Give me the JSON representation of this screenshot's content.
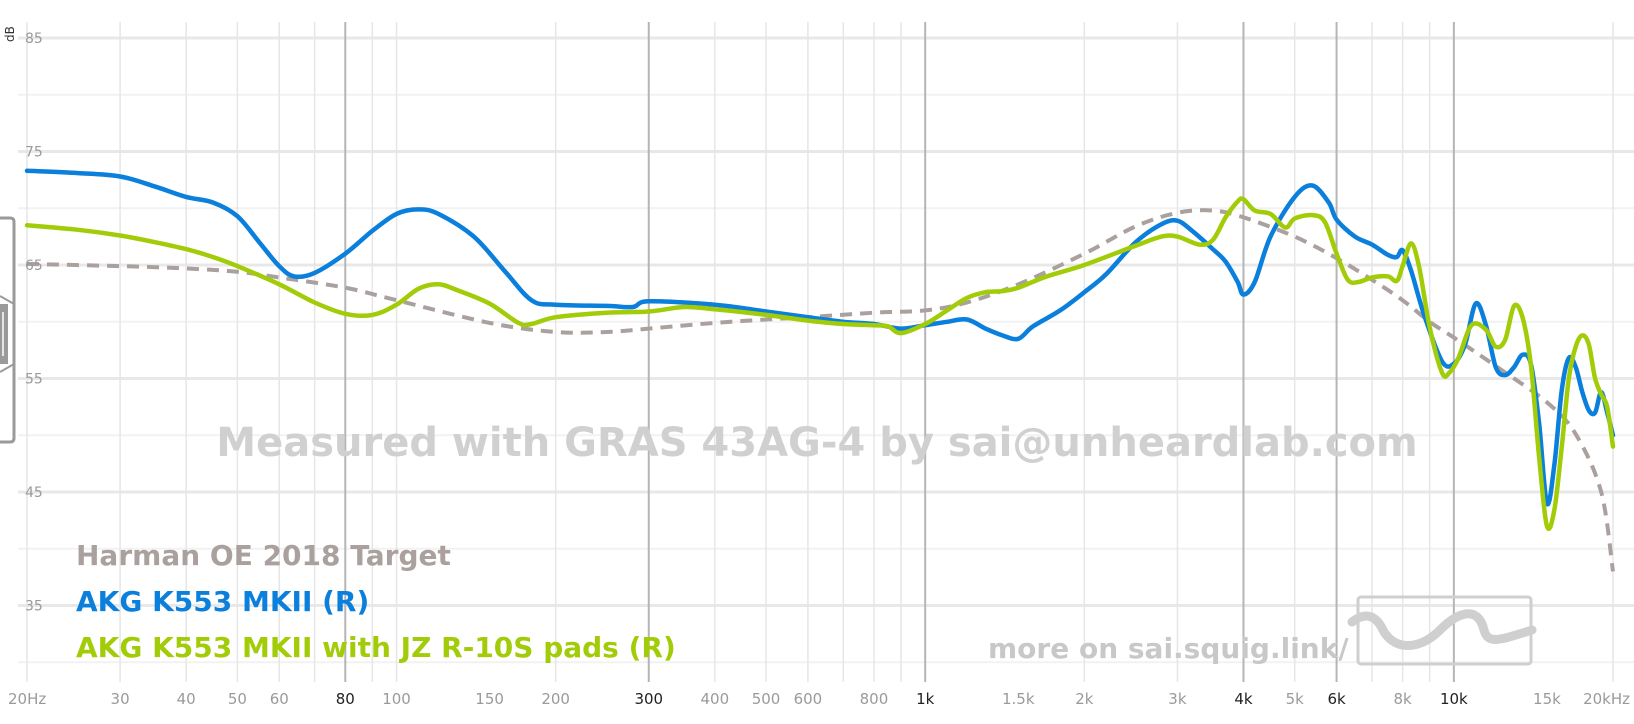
{
  "chart_data": {
    "type": "line",
    "ylabel": "dB",
    "xscale": "log",
    "xlim": [
      20,
      20000
    ],
    "ylim": [
      30,
      88
    ],
    "y_ticks": [
      85,
      75,
      65,
      55,
      45,
      35
    ],
    "x_ticks": [
      {
        "value": 20,
        "label": "20Hz",
        "major": false
      },
      {
        "value": 30,
        "label": "30",
        "major": false
      },
      {
        "value": 40,
        "label": "40",
        "major": false
      },
      {
        "value": 50,
        "label": "50",
        "major": false
      },
      {
        "value": 60,
        "label": "60",
        "major": false
      },
      {
        "value": 80,
        "label": "80",
        "major": true
      },
      {
        "value": 100,
        "label": "100",
        "major": false
      },
      {
        "value": 150,
        "label": "150",
        "major": false
      },
      {
        "value": 200,
        "label": "200",
        "major": false
      },
      {
        "value": 300,
        "label": "300",
        "major": true
      },
      {
        "value": 400,
        "label": "400",
        "major": false
      },
      {
        "value": 500,
        "label": "500",
        "major": false
      },
      {
        "value": 600,
        "label": "600",
        "major": false
      },
      {
        "value": 800,
        "label": "800",
        "major": false
      },
      {
        "value": 1000,
        "label": "1k",
        "major": true
      },
      {
        "value": 1500,
        "label": "1.5k",
        "major": false
      },
      {
        "value": 2000,
        "label": "2k",
        "major": false
      },
      {
        "value": 3000,
        "label": "3k",
        "major": false
      },
      {
        "value": 4000,
        "label": "4k",
        "major": true
      },
      {
        "value": 5000,
        "label": "5k",
        "major": false
      },
      {
        "value": 6000,
        "label": "6k",
        "major": true
      },
      {
        "value": 8000,
        "label": "8k",
        "major": false
      },
      {
        "value": 10000,
        "label": "10k",
        "major": true
      },
      {
        "value": 15000,
        "label": "15k",
        "major": false
      },
      {
        "value": 20000,
        "label": "20kHz",
        "major": false
      }
    ],
    "watermark": "Measured with GRAS 43AG-4 by sai@unheardlab.com",
    "footer_text": "more on sai.squig.link/",
    "legend_placement": "bottom-left",
    "series": [
      {
        "name": "Harman OE 2018 Target",
        "color": "#aaa19e",
        "dashed": true,
        "points": [
          [
            20,
            65.1
          ],
          [
            30,
            64.9
          ],
          [
            40,
            64.7
          ],
          [
            50,
            64.4
          ],
          [
            60,
            63.9
          ],
          [
            80,
            63.0
          ],
          [
            100,
            61.9
          ],
          [
            150,
            59.9
          ],
          [
            200,
            59.1
          ],
          [
            250,
            59.1
          ],
          [
            300,
            59.4
          ],
          [
            400,
            59.9
          ],
          [
            500,
            60.2
          ],
          [
            600,
            60.4
          ],
          [
            800,
            60.8
          ],
          [
            1000,
            61.0
          ],
          [
            1200,
            61.7
          ],
          [
            1500,
            63.3
          ],
          [
            2000,
            66.0
          ],
          [
            2500,
            68.4
          ],
          [
            3000,
            69.6
          ],
          [
            3500,
            69.8
          ],
          [
            4000,
            69.2
          ],
          [
            5000,
            67.5
          ],
          [
            6000,
            65.6
          ],
          [
            7000,
            63.7
          ],
          [
            8000,
            61.9
          ],
          [
            9000,
            60.0
          ],
          [
            10000,
            58.6
          ],
          [
            12000,
            56.1
          ],
          [
            15000,
            52.9
          ],
          [
            17000,
            50.1
          ],
          [
            19000,
            45.0
          ],
          [
            20000,
            38.0
          ]
        ]
      },
      {
        "name": "AKG K553 MKII (R)",
        "color": "#0a7fdc",
        "dashed": false,
        "points": [
          [
            20,
            73.3
          ],
          [
            25,
            73.1
          ],
          [
            30,
            72.8
          ],
          [
            35,
            71.9
          ],
          [
            40,
            71.0
          ],
          [
            45,
            70.5
          ],
          [
            50,
            69.3
          ],
          [
            55,
            67.0
          ],
          [
            60,
            64.9
          ],
          [
            64,
            64.0
          ],
          [
            70,
            64.3
          ],
          [
            80,
            66.0
          ],
          [
            90,
            68.0
          ],
          [
            100,
            69.5
          ],
          [
            110,
            69.9
          ],
          [
            120,
            69.5
          ],
          [
            140,
            67.5
          ],
          [
            160,
            64.5
          ],
          [
            180,
            61.9
          ],
          [
            200,
            61.5
          ],
          [
            250,
            61.4
          ],
          [
            280,
            61.3
          ],
          [
            300,
            61.8
          ],
          [
            400,
            61.5
          ],
          [
            500,
            60.9
          ],
          [
            600,
            60.4
          ],
          [
            700,
            60.0
          ],
          [
            800,
            59.8
          ],
          [
            900,
            59.4
          ],
          [
            1000,
            59.7
          ],
          [
            1100,
            60.0
          ],
          [
            1200,
            60.2
          ],
          [
            1300,
            59.4
          ],
          [
            1400,
            58.8
          ],
          [
            1500,
            58.5
          ],
          [
            1600,
            59.6
          ],
          [
            1800,
            61.0
          ],
          [
            2000,
            62.6
          ],
          [
            2200,
            64.2
          ],
          [
            2500,
            67.0
          ],
          [
            2800,
            68.6
          ],
          [
            3000,
            68.9
          ],
          [
            3200,
            68.0
          ],
          [
            3500,
            66.4
          ],
          [
            3700,
            65.3
          ],
          [
            3900,
            63.5
          ],
          [
            4000,
            62.4
          ],
          [
            4200,
            63.5
          ],
          [
            4500,
            67.5
          ],
          [
            5000,
            71.0
          ],
          [
            5400,
            72.0
          ],
          [
            5800,
            70.5
          ],
          [
            6000,
            69.0
          ],
          [
            6500,
            67.5
          ],
          [
            7000,
            66.8
          ],
          [
            7500,
            65.9
          ],
          [
            7800,
            65.7
          ],
          [
            8000,
            66.3
          ],
          [
            8300,
            64.5
          ],
          [
            8800,
            60.5
          ],
          [
            9500,
            56.5
          ],
          [
            10000,
            56.3
          ],
          [
            10500,
            58.0
          ],
          [
            11000,
            61.6
          ],
          [
            11500,
            59.7
          ],
          [
            12000,
            56.0
          ],
          [
            12500,
            55.3
          ],
          [
            13000,
            56.0
          ],
          [
            13500,
            57.1
          ],
          [
            14000,
            56.2
          ],
          [
            14500,
            51.0
          ],
          [
            15000,
            44.0
          ],
          [
            15500,
            47.5
          ],
          [
            16000,
            54.0
          ],
          [
            16500,
            56.8
          ],
          [
            17000,
            56.0
          ],
          [
            17500,
            53.8
          ],
          [
            18000,
            52.2
          ],
          [
            18500,
            52.0
          ],
          [
            19000,
            53.8
          ],
          [
            19500,
            52.0
          ],
          [
            20000,
            50.0
          ]
        ]
      },
      {
        "name": "AKG K553 MKII with JZ R-10S pads (R)",
        "color": "#a2cc08",
        "dashed": false,
        "points": [
          [
            20,
            68.5
          ],
          [
            25,
            68.1
          ],
          [
            30,
            67.6
          ],
          [
            35,
            67.0
          ],
          [
            40,
            66.4
          ],
          [
            45,
            65.7
          ],
          [
            50,
            64.9
          ],
          [
            60,
            63.3
          ],
          [
            70,
            61.7
          ],
          [
            80,
            60.7
          ],
          [
            90,
            60.6
          ],
          [
            100,
            61.5
          ],
          [
            110,
            62.9
          ],
          [
            120,
            63.3
          ],
          [
            130,
            62.8
          ],
          [
            150,
            61.6
          ],
          [
            170,
            59.9
          ],
          [
            180,
            59.8
          ],
          [
            200,
            60.4
          ],
          [
            250,
            60.8
          ],
          [
            300,
            60.9
          ],
          [
            350,
            61.3
          ],
          [
            400,
            61.1
          ],
          [
            500,
            60.6
          ],
          [
            600,
            60.1
          ],
          [
            700,
            59.8
          ],
          [
            800,
            59.7
          ],
          [
            850,
            59.6
          ],
          [
            900,
            59.0
          ],
          [
            1000,
            59.8
          ],
          [
            1100,
            61.0
          ],
          [
            1200,
            62.1
          ],
          [
            1300,
            62.6
          ],
          [
            1400,
            62.7
          ],
          [
            1500,
            63.0
          ],
          [
            1700,
            64.0
          ],
          [
            2000,
            65.0
          ],
          [
            2500,
            66.7
          ],
          [
            2800,
            67.5
          ],
          [
            3000,
            67.5
          ],
          [
            3300,
            66.8
          ],
          [
            3500,
            67.2
          ],
          [
            3700,
            69.2
          ],
          [
            3900,
            70.6
          ],
          [
            4000,
            70.8
          ],
          [
            4200,
            69.8
          ],
          [
            4500,
            69.5
          ],
          [
            4800,
            68.3
          ],
          [
            5000,
            69.1
          ],
          [
            5400,
            69.4
          ],
          [
            5700,
            68.8
          ],
          [
            6000,
            66.0
          ],
          [
            6300,
            63.7
          ],
          [
            6600,
            63.5
          ],
          [
            7000,
            63.9
          ],
          [
            7500,
            64.0
          ],
          [
            7800,
            63.6
          ],
          [
            8000,
            64.9
          ],
          [
            8300,
            66.9
          ],
          [
            8600,
            64.8
          ],
          [
            9000,
            59.5
          ],
          [
            9500,
            55.5
          ],
          [
            9800,
            55.5
          ],
          [
            10200,
            56.8
          ],
          [
            10800,
            59.7
          ],
          [
            11500,
            59.3
          ],
          [
            12000,
            57.8
          ],
          [
            12500,
            58.4
          ],
          [
            13000,
            61.4
          ],
          [
            13500,
            60.3
          ],
          [
            14000,
            56.0
          ],
          [
            14500,
            48.0
          ],
          [
            15000,
            42.0
          ],
          [
            15500,
            43.5
          ],
          [
            16000,
            49.0
          ],
          [
            16500,
            55.0
          ],
          [
            17000,
            57.8
          ],
          [
            17500,
            58.8
          ],
          [
            18000,
            58.0
          ],
          [
            18500,
            55.0
          ],
          [
            19000,
            53.6
          ],
          [
            19500,
            52.5
          ],
          [
            20000,
            49.0
          ]
        ]
      }
    ]
  }
}
